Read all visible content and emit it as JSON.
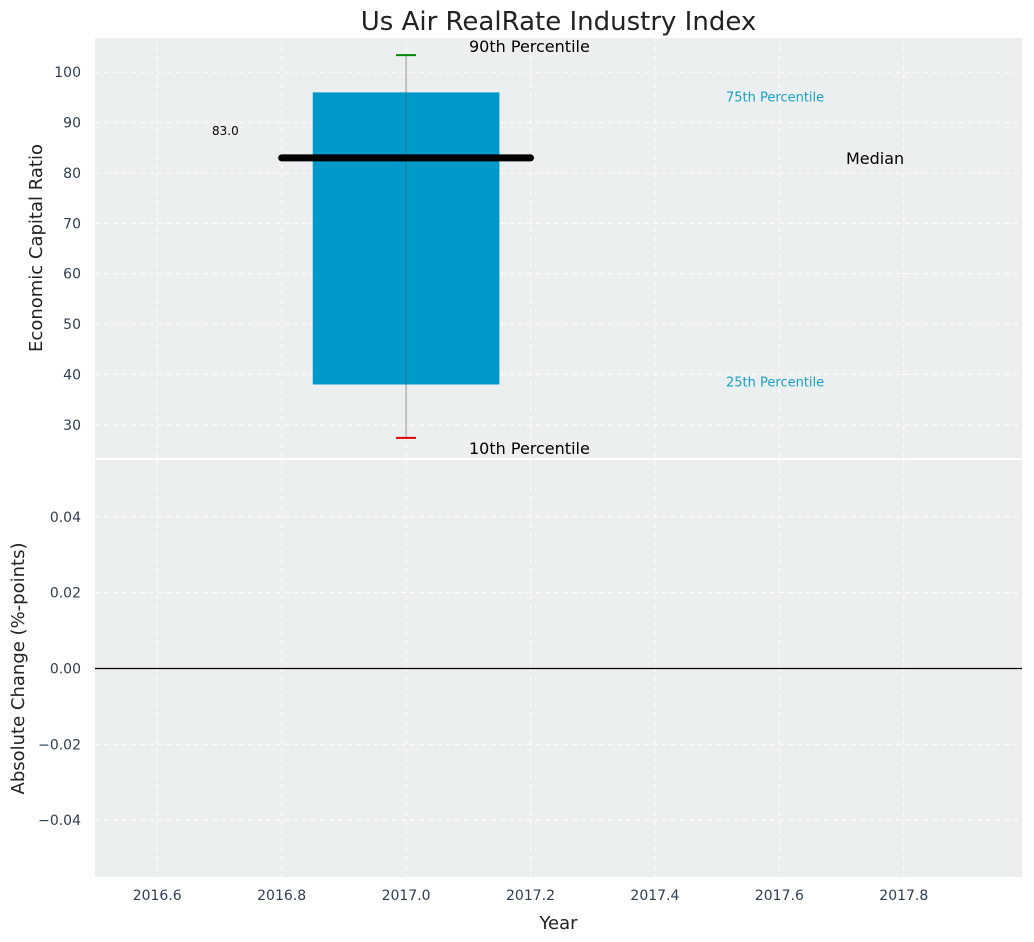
{
  "chart_data": [
    {
      "type": "bar",
      "title": "Us Air RealRate Industry Index",
      "ylabel": "Economic Capital Ratio",
      "xlim": [
        2016.5,
        2017.99
      ],
      "ylim": [
        23.4,
        106.8
      ],
      "yticks": [
        30,
        40,
        50,
        60,
        70,
        80,
        90,
        100
      ],
      "ytick_labels": [
        "30",
        "40",
        "50",
        "60",
        "70",
        "80",
        "90",
        "100"
      ],
      "box": {
        "x": 2017.0,
        "x_start": 2016.85,
        "x_end": 2017.15,
        "p25": 38,
        "p75": 96,
        "color": "#0099cc"
      },
      "median": {
        "value": 83.0,
        "x_start": 2016.8,
        "x_end": 2017.2,
        "label": "83.0"
      },
      "whisker": {
        "p10": 27.4,
        "p90": 103.4,
        "p10_color": "#e00000",
        "p90_color": "#008800"
      },
      "annotations": {
        "p90": "90th Percentile",
        "p10": "10th Percentile",
        "p75": "75th Percentile",
        "p25": "25th Percentile",
        "median": "Median"
      }
    },
    {
      "type": "line",
      "ylabel": "Absolute Change (%-points)",
      "xlabel": "Year",
      "xlim": [
        2016.5,
        2017.99
      ],
      "ylim": [
        -0.055,
        0.055
      ],
      "yticks": [
        -0.04,
        -0.02,
        0.0,
        0.02,
        0.04
      ],
      "ytick_labels": [
        "−0.04",
        "−0.02",
        "0.00",
        "0.02",
        "0.04"
      ],
      "xticks": [
        2016.6,
        2016.8,
        2017.0,
        2017.2,
        2017.4,
        2017.6,
        2017.8
      ],
      "xtick_labels": [
        "2016.6",
        "2016.8",
        "2017.0",
        "2017.2",
        "2017.4",
        "2017.6",
        "2017.8"
      ],
      "zero_line": 0.0,
      "series": []
    }
  ],
  "colors": {
    "panel_bg": "#ebeff0",
    "accent": "#0099cc",
    "accent_text": "#1a9fc6"
  }
}
